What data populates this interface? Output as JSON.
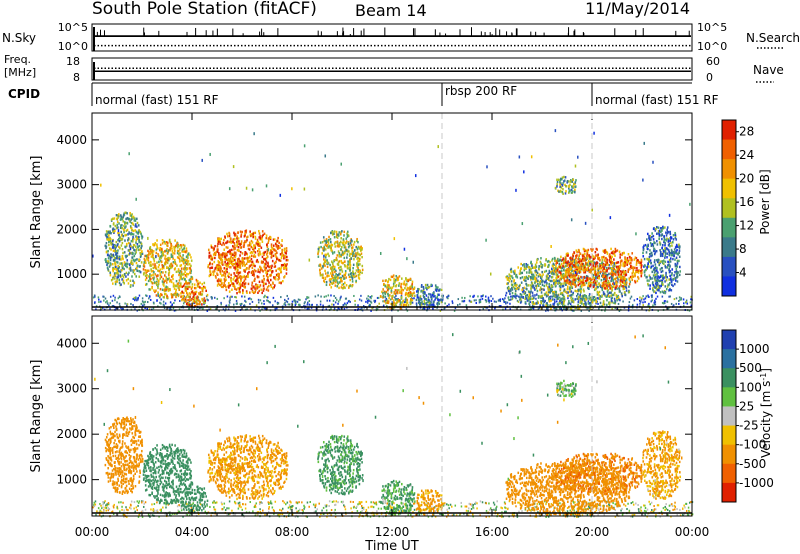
{
  "header": {
    "station": "South Pole Station (fitACF)",
    "beam": "Beam 14",
    "date": "11/May/2014"
  },
  "colors": {
    "power": [
      "#1030e0",
      "#2850c0",
      "#3a7a8a",
      "#4aa070",
      "#b0c020",
      "#f0c000",
      "#f09000",
      "#f06000",
      "#e02000"
    ],
    "velocity": [
      "#2040b0",
      "#2a70a0",
      "#3a9060",
      "#60c040",
      "#c0c0c0",
      "#f0c000",
      "#f09000",
      "#f06000",
      "#e02000"
    ]
  },
  "chart_data": [
    {
      "type": "line",
      "name": "nsky-nsearch-panel",
      "ylabel_left": "N.Sky",
      "ylabel_right": "N.Search",
      "yticks_left": [
        "10^5",
        "10^0"
      ],
      "yticks_right": [
        "10^5",
        "10^0"
      ],
      "series": [
        {
          "name": "N.Sky",
          "style": "solid",
          "level": 0.55
        },
        {
          "name": "N.Search",
          "style": "dotted",
          "level": 0.2
        }
      ]
    },
    {
      "type": "line",
      "name": "freq-nave-panel",
      "ylabel_left": "Freq. [MHz]",
      "ylabel_right": "Nave",
      "yticks_left": [
        "18",
        "8"
      ],
      "yticks_right": [
        "60",
        "0"
      ],
      "series": [
        {
          "name": "Freq",
          "style": "solid",
          "value": 12
        },
        {
          "name": "Nave",
          "style": "dotted",
          "value": 32
        }
      ]
    },
    {
      "type": "table",
      "name": "cpid-bar",
      "label": "CPID",
      "segments": [
        {
          "label": "normal (fast) 151 RF",
          "start": 0,
          "end": 14
        },
        {
          "label": "rbsp 200 RF",
          "start": 14,
          "end": 20
        },
        {
          "label": "normal (fast) 151 RF",
          "start": 20,
          "end": 24
        }
      ]
    },
    {
      "type": "heatmap",
      "name": "power-panel",
      "ylabel": "Slant Range [km]",
      "yticks": [
        1000,
        2000,
        3000,
        4000
      ],
      "ylim": [
        200,
        4600
      ],
      "xlim": [
        0,
        24
      ],
      "colorbar": {
        "label": "Power [dB]",
        "ticks": [
          "4",
          "8",
          "12",
          "16",
          "20",
          "24",
          "28"
        ],
        "range": [
          0,
          30
        ]
      },
      "blobs": [
        {
          "t0": 0.5,
          "t1": 2.0,
          "r0": 700,
          "r1": 2400,
          "v": 12
        },
        {
          "t0": 2.0,
          "t1": 4.0,
          "r0": 500,
          "r1": 1800,
          "v": 18
        },
        {
          "t0": 3.5,
          "t1": 4.6,
          "r0": 300,
          "r1": 900,
          "v": 22
        },
        {
          "t0": 4.6,
          "t1": 7.8,
          "r0": 600,
          "r1": 2000,
          "v": 24
        },
        {
          "t0": 9.0,
          "t1": 10.8,
          "r0": 700,
          "r1": 2000,
          "v": 16
        },
        {
          "t0": 11.5,
          "t1": 12.9,
          "r0": 250,
          "r1": 1000,
          "v": 18
        },
        {
          "t0": 12.9,
          "t1": 14.0,
          "r0": 250,
          "r1": 800,
          "v": 8
        },
        {
          "t0": 16.5,
          "t1": 21.5,
          "r0": 250,
          "r1": 1400,
          "v": 12
        },
        {
          "t0": 18.5,
          "t1": 22.0,
          "r0": 700,
          "r1": 1600,
          "v": 24
        },
        {
          "t0": 22.0,
          "t1": 23.5,
          "r0": 600,
          "r1": 2100,
          "v": 8
        },
        {
          "t0": 18.5,
          "t1": 19.4,
          "r0": 2800,
          "r1": 3200,
          "v": 12
        }
      ]
    },
    {
      "type": "heatmap",
      "name": "velocity-panel",
      "ylabel": "Slant Range [km]",
      "yticks": [
        1000,
        2000,
        3000,
        4000
      ],
      "ylim": [
        200,
        4600
      ],
      "xlim": [
        0,
        24
      ],
      "colorbar": {
        "label": "Velocity [m s^-1]",
        "ticks": [
          "1000",
          "500",
          "100",
          "25",
          "-25",
          "-100",
          "-500",
          "-1000"
        ]
      },
      "blobs": [
        {
          "t0": 0.5,
          "t1": 2.0,
          "r0": 700,
          "r1": 2400,
          "v": -300
        },
        {
          "t0": 2.0,
          "t1": 4.0,
          "r0": 500,
          "r1": 1800,
          "v": 200
        },
        {
          "t0": 3.5,
          "t1": 4.6,
          "r0": 300,
          "r1": 900,
          "v": 300
        },
        {
          "t0": 4.6,
          "t1": 7.8,
          "r0": 600,
          "r1": 2000,
          "v": -150
        },
        {
          "t0": 9.0,
          "t1": 10.8,
          "r0": 700,
          "r1": 2000,
          "v": 150
        },
        {
          "t0": 11.5,
          "t1": 12.9,
          "r0": 250,
          "r1": 1000,
          "v": 120
        },
        {
          "t0": 12.9,
          "t1": 14.0,
          "r0": 250,
          "r1": 800,
          "v": -150
        },
        {
          "t0": 16.5,
          "t1": 21.5,
          "r0": 250,
          "r1": 1400,
          "v": -300
        },
        {
          "t0": 18.5,
          "t1": 22.0,
          "r0": 700,
          "r1": 1600,
          "v": -400
        },
        {
          "t0": 22.0,
          "t1": 23.5,
          "r0": 600,
          "r1": 2100,
          "v": -120
        },
        {
          "t0": 18.5,
          "t1": 19.4,
          "r0": 2800,
          "r1": 3200,
          "v": 60
        }
      ]
    }
  ],
  "x_axis": {
    "label": "Time UT",
    "ticks": [
      "00:00",
      "04:00",
      "08:00",
      "12:00",
      "16:00",
      "20:00",
      "00:00"
    ],
    "tick_hours": [
      0,
      4,
      8,
      12,
      16,
      20,
      24
    ]
  }
}
